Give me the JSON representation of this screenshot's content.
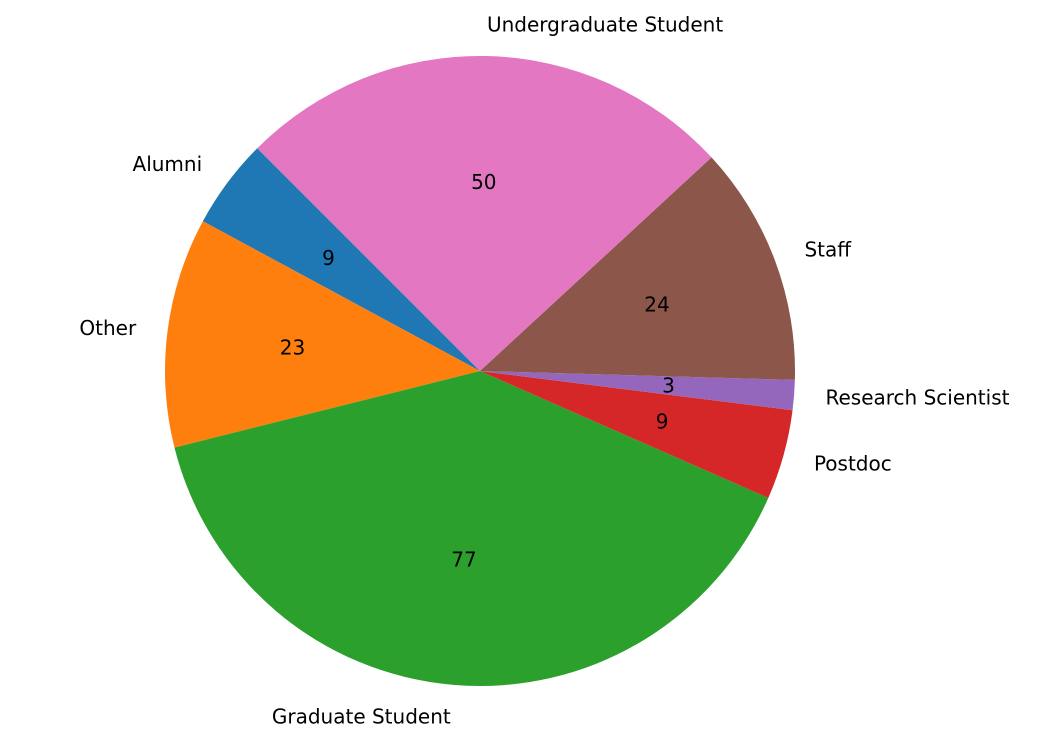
{
  "chart_data": {
    "type": "pie",
    "title": "",
    "start_angle_deg": 135,
    "direction": "counterclockwise",
    "legend": "none",
    "slices": [
      {
        "label": "Alumni",
        "value": 9,
        "value_label": "9",
        "color": "#1f77b4"
      },
      {
        "label": "Other",
        "value": 23,
        "value_label": "23",
        "color": "#ff7f0e"
      },
      {
        "label": "Graduate Student",
        "value": 77,
        "value_label": "77",
        "color": "#2ca02c"
      },
      {
        "label": "Postdoc",
        "value": 9,
        "value_label": "9",
        "color": "#d62728"
      },
      {
        "label": "Research Scientist",
        "value": 3,
        "value_label": "3",
        "color": "#9467bd"
      },
      {
        "label": "Staff",
        "value": 24,
        "value_label": "24",
        "color": "#8c564b"
      },
      {
        "label": "Undergraduate Student",
        "value": 50,
        "value_label": "50",
        "color": "#e377c2"
      }
    ]
  }
}
